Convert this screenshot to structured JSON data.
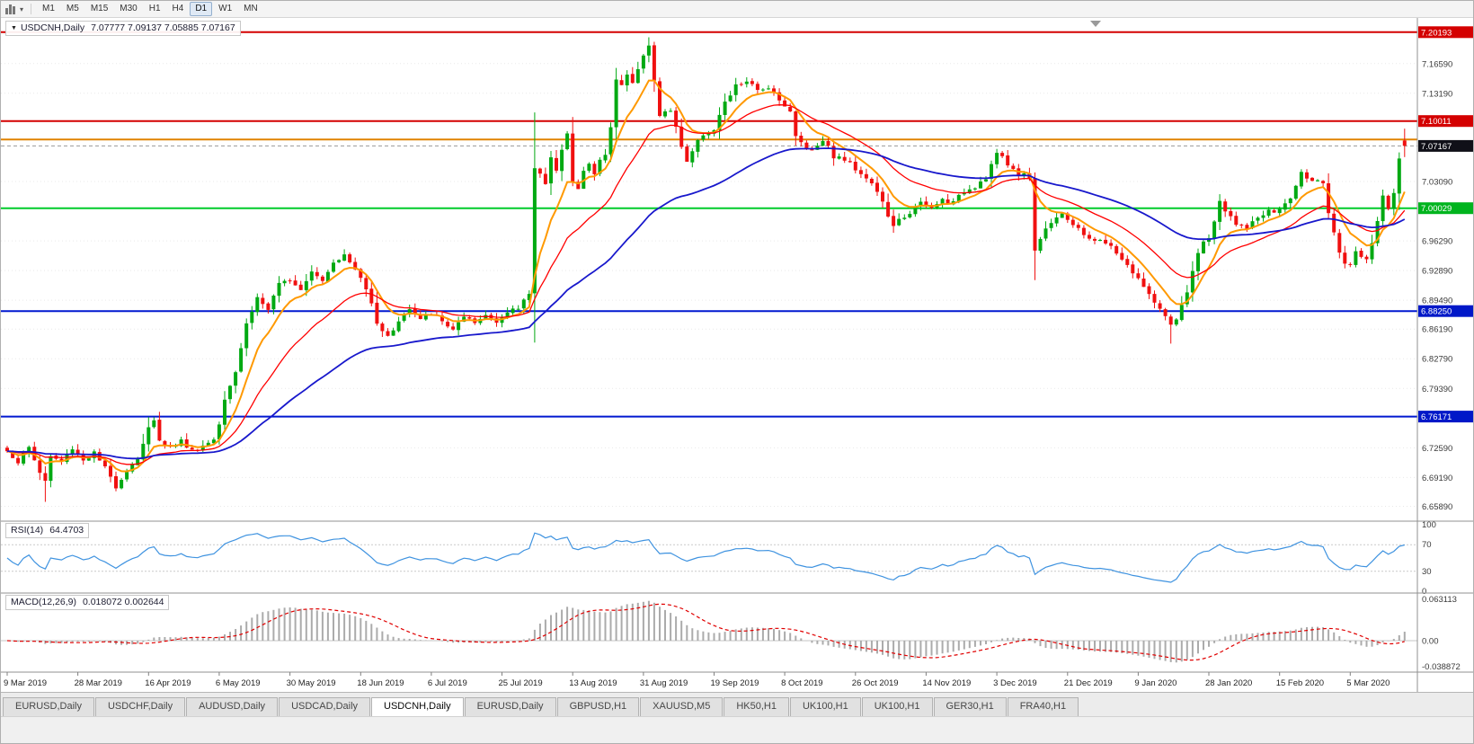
{
  "toolbar": {
    "timeframes": [
      "M1",
      "M5",
      "M15",
      "M30",
      "H1",
      "H4",
      "D1",
      "W1",
      "MN"
    ],
    "active_timeframe": "D1"
  },
  "chart": {
    "symbol_title": "USDCNH,Daily",
    "ohlc_text": "7.07777 7.09137 7.05885 7.07167"
  },
  "indicators": {
    "rsi": {
      "name": "RSI(14)",
      "value": "64.4703",
      "period": 14,
      "levels": [
        "100",
        "70",
        "30",
        "0"
      ],
      "line_color": "#3f93e0"
    },
    "macd": {
      "name": "MACD(12,26,9)",
      "value": "0.018072 0.002644",
      "fast": 12,
      "slow": 26,
      "signal": 9,
      "axis_labels": [
        "0.063113",
        "0.00",
        "-0.038872"
      ],
      "hist_color": "#ababab",
      "signal_color": "#e00000"
    }
  },
  "price_axis": {
    "gridline_labels": [
      "7.16590",
      "7.13190",
      "7.03090",
      "6.96290",
      "6.92890",
      "6.89490",
      "6.86190",
      "6.82790",
      "6.79390",
      "6.72590",
      "6.69190",
      "6.65890"
    ],
    "tags": [
      {
        "text": "7.20193",
        "price": 7.20193,
        "bg": "#d40000",
        "fg": "#ffffff"
      },
      {
        "text": "7.10011",
        "price": 7.10011,
        "bg": "#d40000",
        "fg": "#ffffff"
      },
      {
        "text": "7.07167",
        "price": 7.07167,
        "bg": "#101018",
        "fg": "#ffffff"
      },
      {
        "text": "7.00029",
        "price": 7.00029,
        "bg": "#00b41e",
        "fg": "#ffffff"
      },
      {
        "text": "6.88250",
        "price": 6.8825,
        "bg": "#0018c8",
        "fg": "#ffffff"
      },
      {
        "text": "6.76171",
        "price": 6.76171,
        "bg": "#0018c8",
        "fg": "#ffffff"
      }
    ]
  },
  "chart_data": {
    "type": "candlestick",
    "symbol": "USDCNH",
    "timeframe": "Daily",
    "last_ohlc": {
      "open": 7.07777,
      "high": 7.09137,
      "low": 7.05885,
      "close": 7.07167
    },
    "num_candles": 258,
    "y_range": {
      "top": 7.212,
      "bottom": 6.646
    },
    "close_anchors": [
      [
        0,
        6.722
      ],
      [
        2,
        6.71
      ],
      [
        4,
        6.726
      ],
      [
        6,
        6.698
      ],
      [
        7,
        6.688
      ],
      [
        8,
        6.716
      ],
      [
        10,
        6.71
      ],
      [
        12,
        6.726
      ],
      [
        14,
        6.712
      ],
      [
        16,
        6.72
      ],
      [
        18,
        6.702
      ],
      [
        20,
        6.682
      ],
      [
        22,
        6.7
      ],
      [
        24,
        6.714
      ],
      [
        26,
        6.748
      ],
      [
        27,
        6.756
      ],
      [
        28,
        6.736
      ],
      [
        30,
        6.726
      ],
      [
        32,
        6.734
      ],
      [
        34,
        6.722
      ],
      [
        36,
        6.728
      ],
      [
        38,
        6.736
      ],
      [
        39,
        6.754
      ],
      [
        40,
        6.784
      ],
      [
        42,
        6.814
      ],
      [
        44,
        6.868
      ],
      [
        46,
        6.898
      ],
      [
        48,
        6.884
      ],
      [
        50,
        6.912
      ],
      [
        52,
        6.92
      ],
      [
        54,
        6.908
      ],
      [
        56,
        6.93
      ],
      [
        58,
        6.918
      ],
      [
        60,
        6.94
      ],
      [
        62,
        6.946
      ],
      [
        64,
        6.93
      ],
      [
        65,
        6.92
      ],
      [
        67,
        6.894
      ],
      [
        68,
        6.87
      ],
      [
        70,
        6.852
      ],
      [
        72,
        6.872
      ],
      [
        74,
        6.884
      ],
      [
        76,
        6.872
      ],
      [
        78,
        6.88
      ],
      [
        80,
        6.87
      ],
      [
        82,
        6.862
      ],
      [
        84,
        6.874
      ],
      [
        86,
        6.868
      ],
      [
        88,
        6.878
      ],
      [
        90,
        6.872
      ],
      [
        92,
        6.88
      ],
      [
        94,
        6.886
      ],
      [
        96,
        6.904
      ],
      [
        97,
        7.048
      ],
      [
        98,
        7.04
      ],
      [
        99,
        7.026
      ],
      [
        100,
        7.056
      ],
      [
        101,
        7.046
      ],
      [
        102,
        7.07
      ],
      [
        103,
        7.086
      ],
      [
        104,
        7.03
      ],
      [
        105,
        7.022
      ],
      [
        106,
        7.042
      ],
      [
        107,
        7.052
      ],
      [
        108,
        7.038
      ],
      [
        109,
        7.056
      ],
      [
        110,
        7.062
      ],
      [
        111,
        7.092
      ],
      [
        112,
        7.15
      ],
      [
        113,
        7.14
      ],
      [
        114,
        7.156
      ],
      [
        115,
        7.146
      ],
      [
        116,
        7.16
      ],
      [
        117,
        7.174
      ],
      [
        118,
        7.186
      ],
      [
        119,
        7.146
      ],
      [
        120,
        7.108
      ],
      [
        122,
        7.112
      ],
      [
        124,
        7.072
      ],
      [
        125,
        7.054
      ],
      [
        126,
        7.066
      ],
      [
        128,
        7.086
      ],
      [
        130,
        7.09
      ],
      [
        131,
        7.106
      ],
      [
        132,
        7.12
      ],
      [
        134,
        7.14
      ],
      [
        136,
        7.146
      ],
      [
        138,
        7.134
      ],
      [
        140,
        7.14
      ],
      [
        142,
        7.126
      ],
      [
        144,
        7.11
      ],
      [
        145,
        7.082
      ],
      [
        146,
        7.076
      ],
      [
        148,
        7.066
      ],
      [
        150,
        7.08
      ],
      [
        152,
        7.06
      ],
      [
        154,
        7.056
      ],
      [
        156,
        7.046
      ],
      [
        158,
        7.036
      ],
      [
        160,
        7.02
      ],
      [
        162,
        6.992
      ],
      [
        163,
        6.978
      ],
      [
        164,
        6.986
      ],
      [
        166,
        6.996
      ],
      [
        168,
        7.006
      ],
      [
        170,
        7.0
      ],
      [
        172,
        7.01
      ],
      [
        174,
        7.006
      ],
      [
        176,
        7.02
      ],
      [
        178,
        7.026
      ],
      [
        180,
        7.036
      ],
      [
        182,
        7.064
      ],
      [
        184,
        7.05
      ],
      [
        186,
        7.04
      ],
      [
        188,
        7.036
      ],
      [
        189,
        6.952
      ],
      [
        190,
        6.966
      ],
      [
        192,
        6.986
      ],
      [
        194,
        6.996
      ],
      [
        196,
        6.98
      ],
      [
        198,
        6.97
      ],
      [
        200,
        6.964
      ],
      [
        202,
        6.96
      ],
      [
        204,
        6.95
      ],
      [
        206,
        6.934
      ],
      [
        208,
        6.92
      ],
      [
        210,
        6.9
      ],
      [
        212,
        6.886
      ],
      [
        214,
        6.864
      ],
      [
        215,
        6.872
      ],
      [
        216,
        6.888
      ],
      [
        217,
        6.902
      ],
      [
        218,
        6.93
      ],
      [
        219,
        6.95
      ],
      [
        220,
        6.96
      ],
      [
        221,
        6.966
      ],
      [
        222,
        6.986
      ],
      [
        223,
        7.006
      ],
      [
        224,
        6.996
      ],
      [
        226,
        6.984
      ],
      [
        228,
        6.976
      ],
      [
        230,
        6.99
      ],
      [
        232,
        6.996
      ],
      [
        234,
        6.998
      ],
      [
        236,
        7.012
      ],
      [
        238,
        7.04
      ],
      [
        240,
        7.034
      ],
      [
        242,
        7.026
      ],
      [
        243,
        6.994
      ],
      [
        244,
        6.97
      ],
      [
        245,
        6.95
      ],
      [
        246,
        6.934
      ],
      [
        247,
        6.938
      ],
      [
        248,
        6.952
      ],
      [
        250,
        6.942
      ],
      [
        251,
        6.96
      ],
      [
        252,
        6.986
      ],
      [
        253,
        7.012
      ],
      [
        254,
        7.0
      ],
      [
        255,
        7.016
      ],
      [
        256,
        7.056
      ],
      [
        257,
        7.0717
      ]
    ],
    "ohlc_overrides": {
      "7": {
        "l": 6.664
      },
      "20": {
        "l": 6.676
      },
      "97": {
        "h": 7.11
      },
      "118": {
        "h": 7.196
      },
      "189": {
        "l": 6.918
      },
      "214": {
        "l": 6.8452
      },
      "257": {
        "o": 7.07777,
        "h": 7.09137,
        "l": 7.05885,
        "c": 7.07167
      }
    },
    "hlines": [
      {
        "price": 7.20193,
        "color": "#d40000",
        "width": 2
      },
      {
        "price": 7.10011,
        "color": "#d40000",
        "width": 2
      },
      {
        "price": 7.079,
        "color": "#e08300",
        "width": 2
      },
      {
        "price": 7.00029,
        "color": "#00cc2a",
        "width": 2
      },
      {
        "price": 6.8825,
        "color": "#0018d0",
        "width": 2
      },
      {
        "price": 6.76171,
        "color": "#0018d0",
        "width": 2
      }
    ],
    "bid_line": {
      "price": 7.07167,
      "color": "#999999"
    },
    "moving_averages": [
      {
        "period": 8,
        "color": "#ff9900",
        "width": 2
      },
      {
        "period": 21,
        "color": "#ff0000",
        "width": 1.3
      },
      {
        "period": 55,
        "color": "#1818cc",
        "width": 1.8
      }
    ],
    "x_labels": [
      "9 Mar 2019",
      "28 Mar 2019",
      "16 Apr 2019",
      "6 May 2019",
      "30 May 2019",
      "18 Jun 2019",
      "6 Jul 2019",
      "25 Jul 2019",
      "13 Aug 2019",
      "31 Aug 2019",
      "19 Sep 2019",
      "8 Oct 2019",
      "26 Oct 2019",
      "14 Nov 2019",
      "3 Dec 2019",
      "21 Dec 2019",
      "9 Jan 2020",
      "28 Jan 2020",
      "15 Feb 2020",
      "5 Mar 2020"
    ],
    "label_every": 13,
    "macd_range": {
      "max": 0.063113,
      "min": -0.038872
    }
  },
  "tabs": {
    "items": [
      "EURUSD,Daily",
      "USDCHF,Daily",
      "AUDUSD,Daily",
      "USDCAD,Daily",
      "USDCNH,Daily",
      "EURUSD,Daily",
      "GBPUSD,H1",
      "XAUUSD,M5",
      "HK50,H1",
      "UK100,H1",
      "UK100,H1",
      "GER30,H1",
      "FRA40,H1"
    ],
    "active_index": 4
  },
  "colors": {
    "up": "#00a912",
    "down": "#f01010",
    "background": "#ffffff",
    "panel_border": "#909090",
    "grid": "#e9e9e9",
    "axis_text": "#3a3a3a"
  }
}
